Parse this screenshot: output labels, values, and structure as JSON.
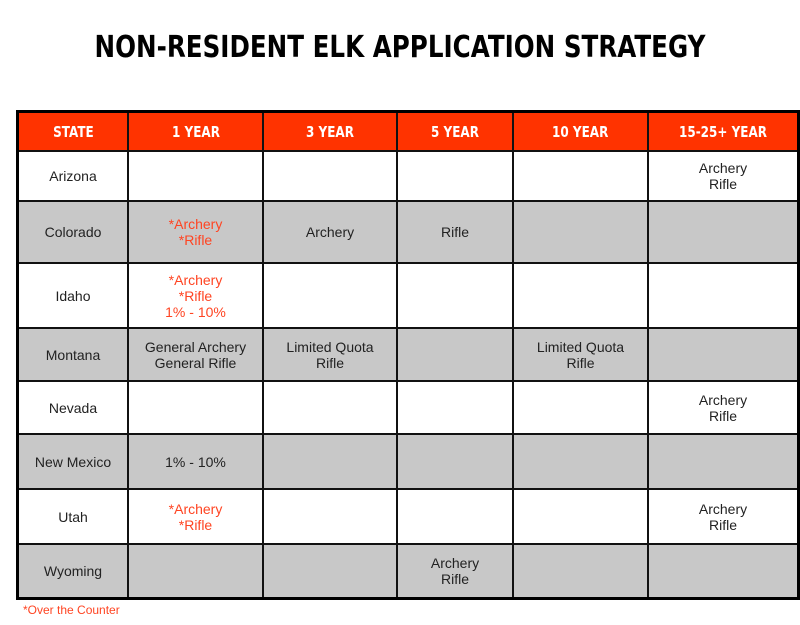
{
  "title": "NON-RESIDENT ELK APPLICATION STRATEGY",
  "colors": {
    "header_bg": "#ff3300",
    "header_text": "#ffffff",
    "alt_row_bg": "#c8c8c8",
    "otc_text": "#ff4422"
  },
  "table": {
    "headers": [
      "STATE",
      "1 YEAR",
      "3 YEAR",
      "5 YEAR",
      "10 YEAR",
      "15-25+ YEAR"
    ],
    "rows": [
      {
        "state": "Arizona",
        "shade": "white",
        "cells": [
          [],
          [],
          [],
          [],
          [
            "Archery",
            "Rifle"
          ]
        ],
        "red": [
          false,
          false,
          false,
          false,
          false
        ]
      },
      {
        "state": "Colorado",
        "shade": "gray",
        "cells": [
          [
            "*Archery",
            "*Rifle"
          ],
          [
            "Archery"
          ],
          [
            "Rifle"
          ],
          [],
          []
        ],
        "red": [
          true,
          false,
          false,
          false,
          false
        ]
      },
      {
        "state": "Idaho",
        "shade": "white",
        "cells": [
          [
            "*Archery",
            "*Rifle",
            "1% - 10%"
          ],
          [],
          [],
          [],
          []
        ],
        "red": [
          true,
          false,
          false,
          false,
          false
        ]
      },
      {
        "state": "Montana",
        "shade": "gray",
        "cells": [
          [
            "General Archery",
            "General Rifle"
          ],
          [
            "Limited Quota",
            "Rifle"
          ],
          [],
          [
            "Limited Quota",
            "Rifle"
          ],
          []
        ],
        "red": [
          false,
          false,
          false,
          false,
          false
        ]
      },
      {
        "state": "Nevada",
        "shade": "white",
        "cells": [
          [],
          [],
          [],
          [],
          [
            "Archery",
            "Rifle"
          ]
        ],
        "red": [
          false,
          false,
          false,
          false,
          false
        ]
      },
      {
        "state": "New Mexico",
        "shade": "gray",
        "cells": [
          [
            "1% - 10%"
          ],
          [],
          [],
          [],
          []
        ],
        "red": [
          false,
          false,
          false,
          false,
          false
        ]
      },
      {
        "state": "Utah",
        "shade": "white",
        "cells": [
          [
            "*Archery",
            "*Rifle"
          ],
          [],
          [],
          [],
          [
            "Archery",
            "Rifle"
          ]
        ],
        "red": [
          true,
          false,
          false,
          false,
          false
        ]
      },
      {
        "state": "Wyoming",
        "shade": "gray",
        "cells": [
          [],
          [],
          [
            "Archery",
            "Rifle"
          ],
          [],
          []
        ],
        "red": [
          false,
          false,
          false,
          false,
          false
        ]
      }
    ]
  },
  "footnote": "*Over the Counter"
}
